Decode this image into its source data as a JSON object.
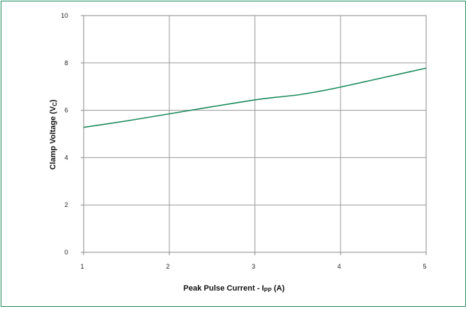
{
  "chart_data": {
    "type": "line",
    "title": "",
    "xlabel_main": "Peak Pulse Current - ",
    "xlabel_sym": "I",
    "xlabel_sub": "PP",
    "xlabel_unit": " (A)",
    "ylabel_main": "Clamp Voltage (V",
    "ylabel_sub": "C",
    "ylabel_close": ")",
    "xlim": [
      1,
      5
    ],
    "ylim": [
      0,
      10
    ],
    "x_ticks": [
      1,
      2,
      3,
      4,
      5
    ],
    "y_ticks": [
      0,
      2,
      4,
      6,
      8,
      10
    ],
    "grid": true,
    "line_color": "#1a8a5a",
    "frame_color": "#1f8a5b",
    "series": [
      {
        "x": [
          1.0,
          1.5,
          2.0,
          2.5,
          3.0,
          3.25,
          3.5,
          3.75,
          4.0,
          4.5,
          5.0
        ],
        "values": [
          5.28,
          5.55,
          5.85,
          6.15,
          6.44,
          6.55,
          6.65,
          6.8,
          6.98,
          7.38,
          7.78
        ]
      }
    ]
  }
}
